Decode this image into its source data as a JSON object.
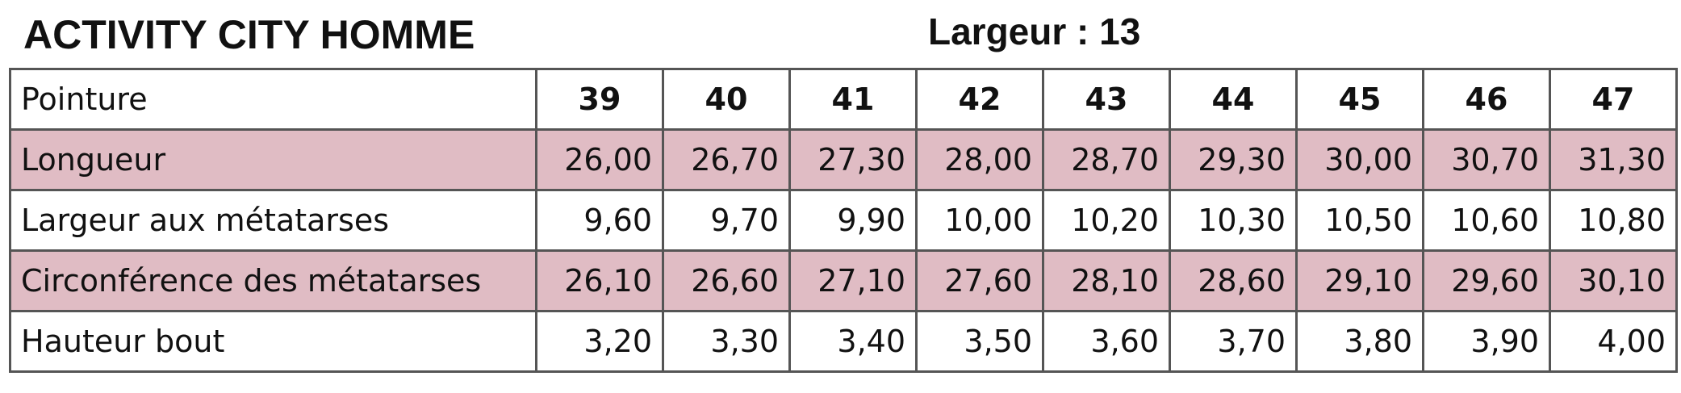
{
  "header": {
    "title": "ACTIVITY CITY HOMME",
    "subtitle": "Largeur : 13"
  },
  "table": {
    "header": [
      "Pointure",
      "39",
      "40",
      "41",
      "42",
      "43",
      "44",
      "45",
      "46",
      "47"
    ],
    "rows": [
      [
        "Longueur",
        "26,00",
        "26,70",
        "27,30",
        "28,00",
        "28,70",
        "29,30",
        "30,00",
        "30,70",
        "31,30"
      ],
      [
        "Largeur aux métatarses",
        "9,60",
        "9,70",
        "9,90",
        "10,00",
        "10,20",
        "10,30",
        "10,50",
        "10,60",
        "10,80"
      ],
      [
        "Circonférence des métatarses",
        "26,10",
        "26,60",
        "27,10",
        "27,60",
        "28,10",
        "28,60",
        "29,10",
        "29,60",
        "30,10"
      ],
      [
        "Hauteur bout",
        "3,20",
        "3,30",
        "3,40",
        "3,50",
        "3,60",
        "3,70",
        "3,80",
        "3,90",
        "4,00"
      ]
    ]
  }
}
